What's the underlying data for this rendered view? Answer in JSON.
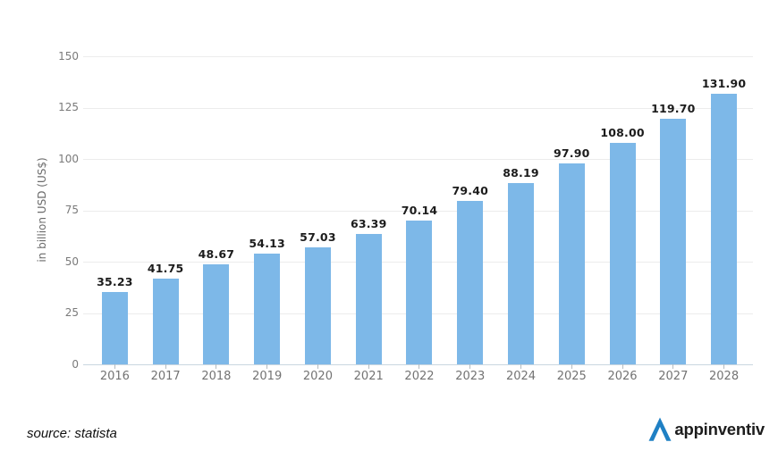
{
  "chart_data": {
    "type": "bar",
    "title": "",
    "categories": [
      "2016",
      "2017",
      "2018",
      "2019",
      "2020",
      "2021",
      "2022",
      "2023",
      "2024",
      "2025",
      "2026",
      "2027",
      "2028"
    ],
    "values": [
      35.23,
      41.75,
      48.67,
      54.13,
      57.03,
      63.39,
      70.14,
      79.4,
      88.19,
      97.9,
      108.0,
      119.7,
      131.9
    ],
    "value_labels": [
      "35.23",
      "41.75",
      "48.67",
      "54.13",
      "57.03",
      "63.39",
      "70.14",
      "79.40",
      "88.19",
      "97.90",
      "108.00",
      "119.70",
      "131.90"
    ],
    "xlabel": "",
    "ylabel": "in billion USD (US$)",
    "ylim": [
      0,
      150
    ],
    "yticks": [
      0,
      25,
      50,
      75,
      100,
      125,
      150
    ],
    "grid": true,
    "legend": false,
    "bar_color": "#7db8e8"
  },
  "footer": {
    "source_text": "source: statista",
    "brand_name": "appinventiv",
    "brand_color": "#1f80c4"
  }
}
